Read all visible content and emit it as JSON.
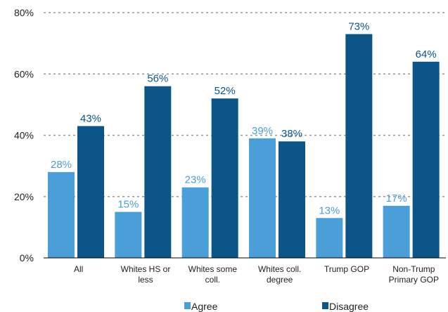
{
  "chart_data": {
    "type": "bar",
    "categories": [
      [
        "All"
      ],
      [
        "Whites HS or",
        "less"
      ],
      [
        "Whites some",
        "coll."
      ],
      [
        "Whites coll.",
        "degree"
      ],
      [
        "Trump GOP"
      ],
      [
        "Non-Trump",
        "Primary GOP"
      ]
    ],
    "series": [
      {
        "name": "Agree",
        "values": [
          28,
          15,
          23,
          39,
          13,
          17
        ],
        "labels": [
          "28%",
          "15%",
          "23%",
          "39%",
          "13%",
          "17%"
        ]
      },
      {
        "name": "Disagree",
        "values": [
          43,
          56,
          52,
          38,
          73,
          64
        ],
        "labels": [
          "43%",
          "56%",
          "52%",
          "38%",
          "73%",
          "64%"
        ]
      }
    ],
    "yticks": [
      0,
      20,
      40,
      60,
      80
    ],
    "ytick_labels": [
      "0%",
      "20%",
      "40%",
      "60%",
      "80%"
    ],
    "ylim": [
      0,
      80
    ],
    "grid": true,
    "legend_position": "bottom",
    "colors": {
      "agree": "#4a9fd8",
      "disagree": "#0b5589",
      "agree_label": "#4a9fd8",
      "disagree_label": "#0b5589",
      "grid": "#999999"
    }
  }
}
